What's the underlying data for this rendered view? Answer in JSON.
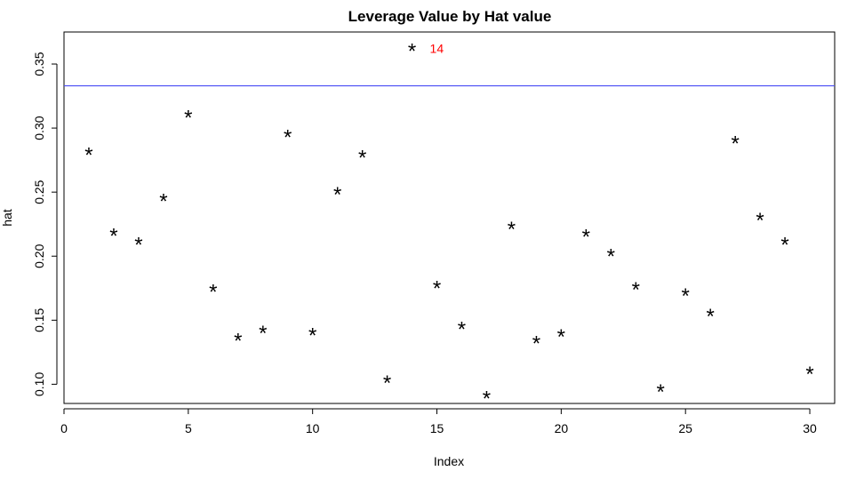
{
  "chart_data": {
    "type": "scatter",
    "title": "Leverage Value by Hat value",
    "xlabel": "Index",
    "ylabel": "hat",
    "xlim": [
      0,
      31
    ],
    "ylim": [
      0.085,
      0.375
    ],
    "x_ticks": [
      0,
      5,
      10,
      15,
      20,
      25,
      30
    ],
    "y_ticks": [
      0.1,
      0.15,
      0.2,
      0.25,
      0.3,
      0.35
    ],
    "x_tick_labels": [
      "0",
      "5",
      "10",
      "15",
      "20",
      "25",
      "30"
    ],
    "y_tick_labels": [
      "0.10",
      "0.15",
      "0.20",
      "0.25",
      "0.30",
      "0.35"
    ],
    "point_symbol": "*",
    "grid": false,
    "x": [
      1,
      2,
      3,
      4,
      5,
      6,
      7,
      8,
      9,
      10,
      11,
      12,
      13,
      14,
      15,
      16,
      17,
      18,
      19,
      20,
      21,
      22,
      23,
      24,
      25,
      26,
      27,
      28,
      29,
      30
    ],
    "y": [
      0.281,
      0.218,
      0.211,
      0.245,
      0.31,
      0.174,
      0.136,
      0.142,
      0.295,
      0.14,
      0.25,
      0.279,
      0.103,
      0.362,
      0.177,
      0.145,
      0.091,
      0.223,
      0.134,
      0.139,
      0.217,
      0.202,
      0.176,
      0.096,
      0.171,
      0.155,
      0.29,
      0.23,
      0.211,
      0.11
    ],
    "reference_line": {
      "orientation": "horizontal",
      "y": 0.333,
      "color": "#4a4ef5"
    },
    "annotations": [
      {
        "x": 14,
        "y": 0.362,
        "text": "14",
        "color": "#ff0000"
      }
    ],
    "colors": {
      "points": "#000000",
      "axes": "#000000"
    }
  }
}
